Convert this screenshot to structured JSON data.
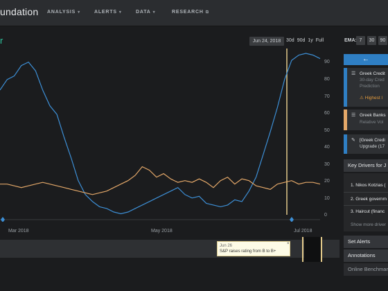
{
  "brand": "undation",
  "nav": [
    {
      "label": "ANALYSIS",
      "caret": true
    },
    {
      "label": "ALERTS",
      "caret": true
    },
    {
      "label": "DATA",
      "caret": true
    },
    {
      "label": "RESEARCH",
      "caret": false,
      "external": true
    }
  ],
  "chart": {
    "title": "r",
    "date_badge": "Jun 24, 2018",
    "ranges": [
      "30d",
      "90d",
      "1y",
      "Full"
    ],
    "yticks": [
      "90",
      "80",
      "70",
      "60",
      "50",
      "40",
      "30",
      "20",
      "10",
      "0"
    ],
    "xticks": [
      "Mar 2018",
      "May 2018",
      "Jul 2018"
    ],
    "colors": {
      "blue": "#3d8fd6",
      "orange": "#e4a869",
      "cursor": "#e2c98a"
    }
  },
  "chart_data": {
    "type": "line",
    "ylim": [
      0,
      95
    ],
    "series": [
      {
        "values": [
          72,
          78,
          80,
          86,
          88,
          83,
          72,
          63,
          58,
          45,
          33,
          20,
          12,
          8,
          5,
          4,
          2,
          1,
          2,
          4,
          6,
          8,
          10,
          12,
          14,
          16,
          12,
          10,
          11,
          7,
          6,
          5,
          6,
          9,
          8,
          14,
          22,
          35,
          48,
          62,
          78,
          89,
          92,
          93,
          92,
          90
        ]
      },
      {
        "values": [
          18,
          18,
          17,
          16,
          17,
          18,
          19,
          18,
          17,
          16,
          15,
          14,
          13,
          12,
          13,
          14,
          16,
          18,
          20,
          23,
          28,
          26,
          22,
          24,
          21,
          19,
          20,
          19,
          21,
          19,
          16,
          20,
          22,
          18,
          21,
          20,
          17,
          16,
          15,
          18,
          19,
          20,
          18,
          19,
          19,
          18
        ]
      }
    ]
  },
  "timeline": {
    "event_date": "Jun 26",
    "event_text": "S&P raises rating from B to B+",
    "close": "×"
  },
  "sidebar": {
    "ema_label": "EMA:",
    "ema_options": [
      "7",
      "30",
      "90"
    ],
    "back_icon": "arrow-left-icon",
    "cards": [
      {
        "title": "Greek Credit",
        "sub1": "30-day Cred",
        "sub2": "Prediction",
        "warn": "Highest l",
        "color": "#2f7fc4",
        "icon": "list-icon"
      },
      {
        "title": "Greek Banks",
        "sub1": "Relative Vol",
        "color": "#e4a869",
        "icon": "list-icon"
      },
      {
        "title": "[Greek Credi",
        "sub1": "Upgrade (17",
        "color": "#2f7fc4",
        "icon": "pin-icon"
      }
    ],
    "key_drivers": {
      "title": "Key Drivers for J",
      "items": [
        "1. Nikos Kotzias (",
        "2. Greek governm",
        "3. Haircut (financ"
      ],
      "more": "Show more driver"
    },
    "set_alerts": "Set Alerts",
    "annotations": "Annotations",
    "online_bench": "Online Benchmar"
  }
}
